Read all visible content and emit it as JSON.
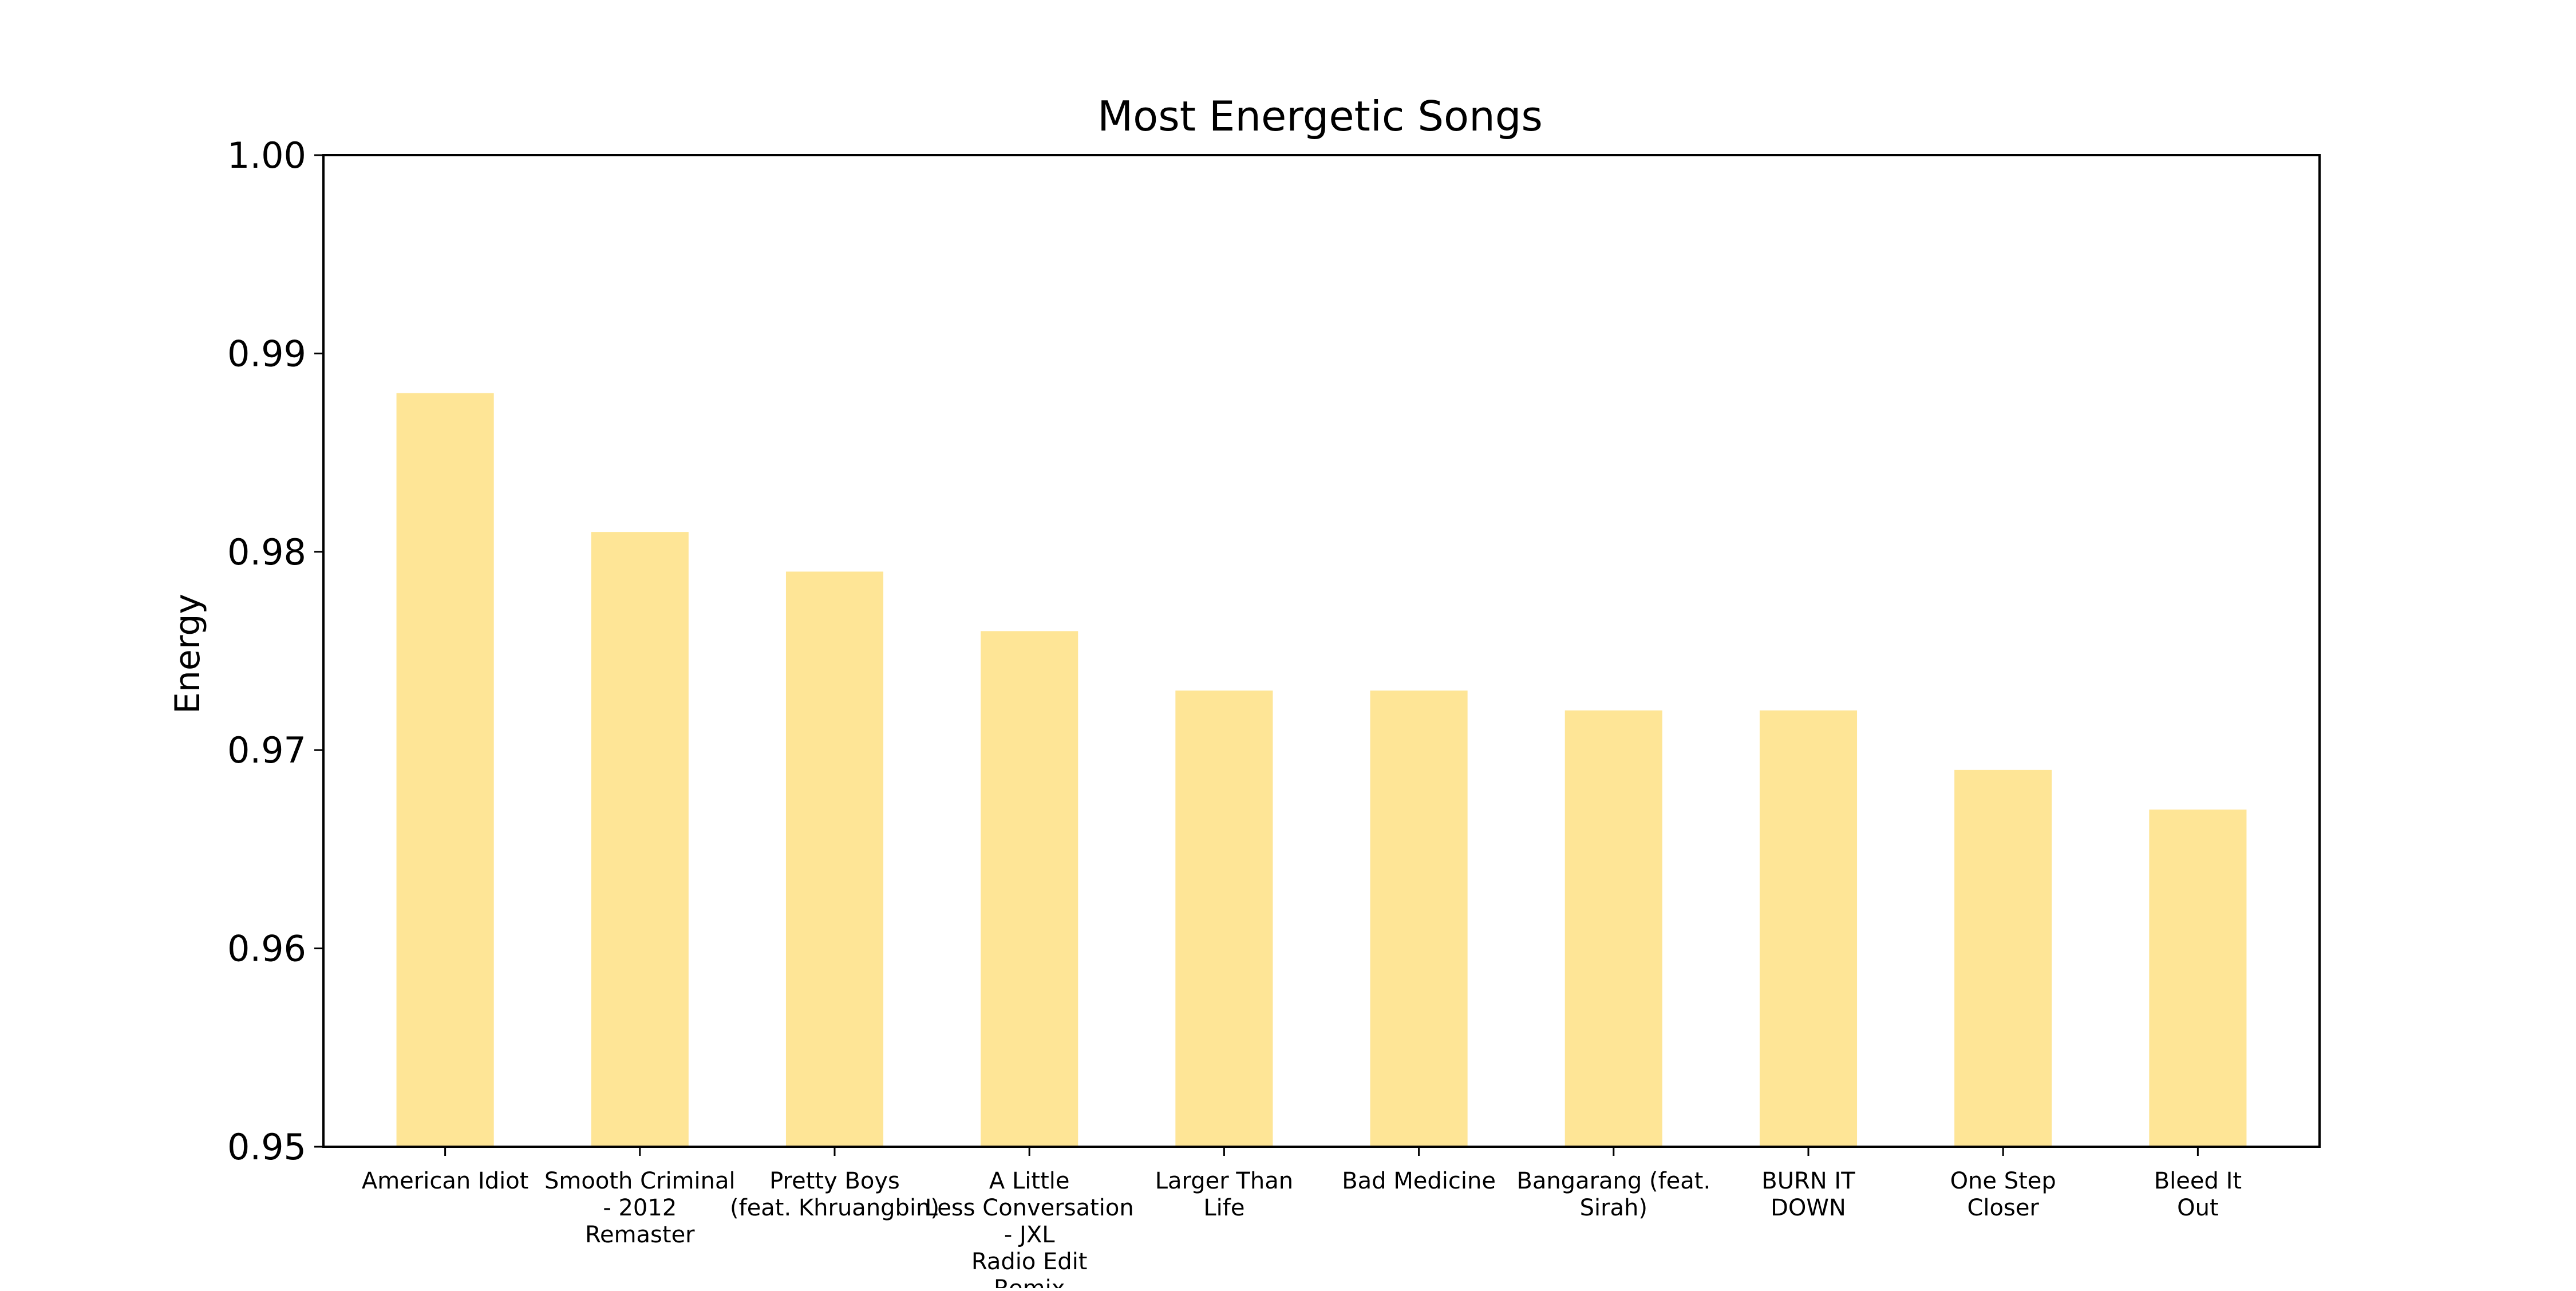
{
  "chart_data": {
    "type": "bar",
    "title": "Most Energetic Songs",
    "xlabel": "",
    "ylabel": "Energy",
    "ylim": [
      0.95,
      1.0
    ],
    "yticks": [
      "0.95",
      "0.96",
      "0.97",
      "0.98",
      "0.99",
      "1.00"
    ],
    "grid": false,
    "bar_color": "#fee596",
    "categories": [
      "American Idiot",
      "Smooth Criminal\n- 2012\nRemaster",
      "Pretty Boys\n(feat. Khruangbin)",
      "A Little\nLess Conversation\n- JXL\nRadio Edit\nRemix",
      "Larger Than\nLife",
      "Bad Medicine",
      "Bangarang (feat.\nSirah)",
      "BURN IT\nDOWN",
      "One Step\nCloser",
      "Bleed It\nOut"
    ],
    "values": [
      0.988,
      0.981,
      0.979,
      0.976,
      0.973,
      0.973,
      0.972,
      0.972,
      0.969,
      0.967
    ]
  }
}
